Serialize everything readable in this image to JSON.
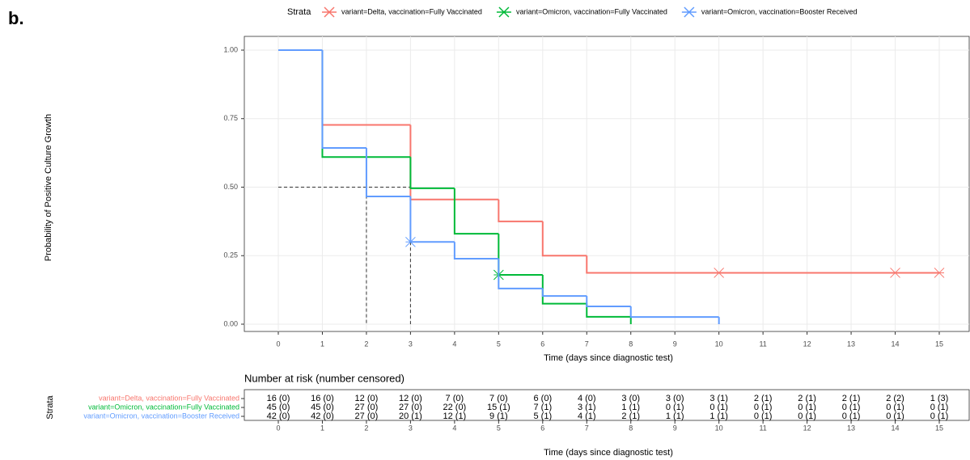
{
  "panel_label": "b.",
  "chart_data": {
    "type": "step",
    "legend_title": "Strata",
    "xlabel": "Time (days since diagnostic test)",
    "ylabel": "Probability of Positive Culture Growth",
    "xlim": [
      0,
      15
    ],
    "ylim": [
      0,
      1
    ],
    "xticks": [
      0,
      1,
      2,
      3,
      4,
      5,
      6,
      7,
      8,
      9,
      10,
      11,
      12,
      13,
      14,
      15
    ],
    "yticks": [
      {
        "value": 0,
        "label": "0.00"
      },
      {
        "value": 0.25,
        "label": "0.25"
      },
      {
        "value": 0.5,
        "label": "0.50"
      },
      {
        "value": 0.75,
        "label": "0.75"
      },
      {
        "value": 1,
        "label": "1.00"
      }
    ],
    "grid": true,
    "median_x": [
      2,
      3
    ],
    "median_y": 0.5,
    "series": [
      {
        "name": "variant=Delta, vaccination=Fully Vaccinated",
        "color": "#F8766D",
        "x": [
          0,
          1,
          3,
          5,
          6,
          7,
          15
        ],
        "values": [
          1,
          0.727,
          0.455,
          0.375,
          0.25,
          0.1875,
          0.1875
        ],
        "censored_x": [
          10,
          14,
          15
        ],
        "censored_values": [
          0.1875,
          0.1875,
          0.1875
        ]
      },
      {
        "name": "variant=Omicron, vaccination=Fully Vaccinated",
        "color": "#00BA38",
        "x": [
          0,
          1,
          3,
          4,
          5,
          6,
          7,
          8
        ],
        "values": [
          1,
          0.61,
          0.496,
          0.33,
          0.18,
          0.075,
          0.027,
          0
        ],
        "censored_x": [
          5
        ],
        "censored_values": [
          0.18
        ]
      },
      {
        "name": "variant=Omicron, vaccination=Booster Received",
        "color": "#619CFF",
        "x": [
          0,
          1,
          2,
          3,
          4,
          5,
          6,
          7,
          8,
          10
        ],
        "values": [
          1,
          0.643,
          0.466,
          0.3,
          0.239,
          0.13,
          0.103,
          0.065,
          0.026,
          0
        ],
        "censored_x": [
          3
        ],
        "censored_values": [
          0.3
        ]
      }
    ],
    "risk_table": {
      "title": "Number at risk (number censored)",
      "ylabel": "Strata",
      "xlabel": "Time (days since diagnostic test)",
      "rows": [
        [
          "16 (0)",
          "16 (0)",
          "12 (0)",
          "12 (0)",
          "7 (0)",
          "7 (0)",
          "6 (0)",
          "4 (0)",
          "3 (0)",
          "3 (0)",
          "3 (1)",
          "2 (1)",
          "2 (1)",
          "2 (1)",
          "2 (2)",
          "1 (3)"
        ],
        [
          "45 (0)",
          "45 (0)",
          "27 (0)",
          "27 (0)",
          "22 (0)",
          "15 (1)",
          "7 (1)",
          "3 (1)",
          "1 (1)",
          "0 (1)",
          "0 (1)",
          "0 (1)",
          "0 (1)",
          "0 (1)",
          "0 (1)",
          "0 (1)"
        ],
        [
          "42 (0)",
          "42 (0)",
          "27 (0)",
          "20 (1)",
          "12 (1)",
          "9 (1)",
          "5 (1)",
          "4 (1)",
          "2 (1)",
          "1 (1)",
          "1 (1)",
          "0 (1)",
          "0 (1)",
          "0 (1)",
          "0 (1)",
          "0 (1)"
        ]
      ]
    }
  }
}
